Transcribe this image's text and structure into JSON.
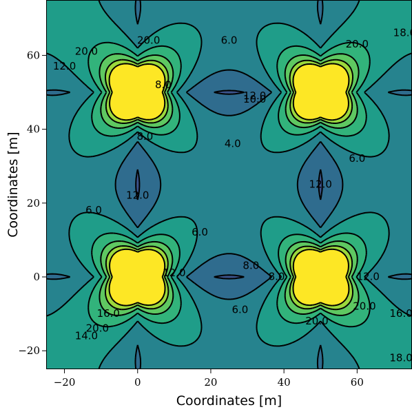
{
  "chart_data": {
    "type": "heatmap",
    "title": "",
    "xlabel": "Coordinates [m]",
    "ylabel": "Coordinates [m]",
    "xlim": [
      -25,
      75
    ],
    "ylim": [
      -25,
      75
    ],
    "xticks": [
      -20,
      0,
      20,
      40,
      60
    ],
    "yticks": [
      -20,
      0,
      20,
      40,
      60
    ],
    "xtick_labels": [
      "−20",
      "0",
      "20",
      "40",
      "60"
    ],
    "ytick_labels": [
      "−20",
      "0",
      "20",
      "40",
      "60"
    ],
    "colormap": "viridis",
    "color_range": [
      2,
      22
    ],
    "contour_levels": [
      4,
      6,
      8,
      10,
      12,
      14,
      16,
      18,
      20
    ],
    "contour_label_values": [
      {
        "text": "4.0",
        "x": 26,
        "y": 36
      },
      {
        "text": "6.0",
        "x": 17,
        "y": 12
      },
      {
        "text": "6.0",
        "x": -12,
        "y": 18
      },
      {
        "text": "6.0",
        "x": 60,
        "y": 32
      },
      {
        "text": "6.0",
        "x": 25,
        "y": 64
      },
      {
        "text": "6.0",
        "x": 28,
        "y": -9
      },
      {
        "text": "8.0",
        "x": 2,
        "y": 38
      },
      {
        "text": "8.0",
        "x": 7,
        "y": 52
      },
      {
        "text": "8.0",
        "x": 31,
        "y": 3
      },
      {
        "text": "8.0",
        "x": 38,
        "y": 0
      },
      {
        "text": "10.0",
        "x": 32,
        "y": 48
      },
      {
        "text": "12.0",
        "x": 32,
        "y": 49
      },
      {
        "text": "12.0",
        "x": 0,
        "y": 22
      },
      {
        "text": "12.0",
        "x": 50,
        "y": 25
      },
      {
        "text": "12.0",
        "x": 10,
        "y": 1
      },
      {
        "text": "12.0",
        "x": -20,
        "y": 57
      },
      {
        "text": "12.0",
        "x": 63,
        "y": 0
      },
      {
        "text": "14.0",
        "x": -14,
        "y": -16
      },
      {
        "text": "16.0",
        "x": -8,
        "y": -10
      },
      {
        "text": "16.0",
        "x": 72,
        "y": -10
      },
      {
        "text": "18.0",
        "x": 73,
        "y": 66
      },
      {
        "text": "18.0",
        "x": 72,
        "y": -22
      },
      {
        "text": "20.0",
        "x": -14,
        "y": 61
      },
      {
        "text": "20.0",
        "x": 3,
        "y": 64
      },
      {
        "text": "20.0",
        "x": -11,
        "y": -14
      },
      {
        "text": "20.0",
        "x": 60,
        "y": 63
      },
      {
        "text": "20.0",
        "x": 62,
        "y": -8
      },
      {
        "text": "20.0",
        "x": 49,
        "y": -12
      }
    ]
  }
}
